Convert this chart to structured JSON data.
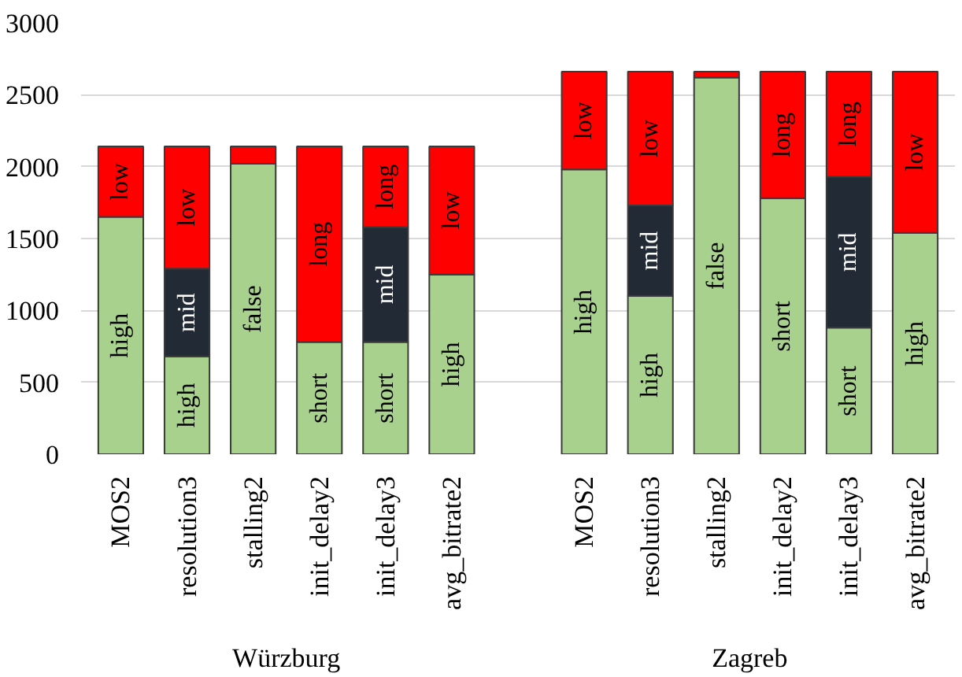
{
  "chart_data": {
    "type": "bar",
    "stacked": true,
    "categories": [
      "MOS2",
      "resolution3",
      "stalling2",
      "init_delay2",
      "init_delay3",
      "avg_bitrate2",
      null,
      "MOS2",
      "resolution3",
      "stalling2",
      "init_delay2",
      "init_delay3",
      "avg_bitrate2"
    ],
    "series": [
      {
        "color": "#a9d18e",
        "values": [
          1650,
          680,
          2020,
          780,
          780,
          1250,
          null,
          1980,
          1100,
          2620,
          1780,
          880,
          1540
        ],
        "value_labels": [
          "high",
          "high",
          "false",
          "short",
          "short",
          "high",
          null,
          "high",
          "high",
          "false",
          "short",
          "short",
          "high"
        ]
      },
      {
        "color": "#222a35",
        "values": [
          null,
          610,
          null,
          null,
          800,
          null,
          null,
          null,
          630,
          null,
          null,
          1050,
          null
        ],
        "value_labels": [
          null,
          "mid",
          null,
          null,
          "mid",
          null,
          null,
          null,
          "mid",
          null,
          null,
          "mid",
          null
        ]
      },
      {
        "color": "#ff0000",
        "values": [
          490,
          850,
          120,
          1360,
          560,
          890,
          null,
          680,
          930,
          40,
          880,
          730,
          1120
        ],
        "value_labels": [
          "low",
          "low",
          null,
          "long",
          "long",
          "low",
          null,
          "low",
          "low",
          null,
          "long",
          "long",
          "low"
        ]
      }
    ],
    "annotations": [
      "Würzburg",
      "Zagreb"
    ],
    "ylim": [
      0,
      3000
    ],
    "yticks": [
      0,
      500,
      1000,
      1500,
      2000,
      2500,
      3000
    ],
    "grid": "y"
  }
}
